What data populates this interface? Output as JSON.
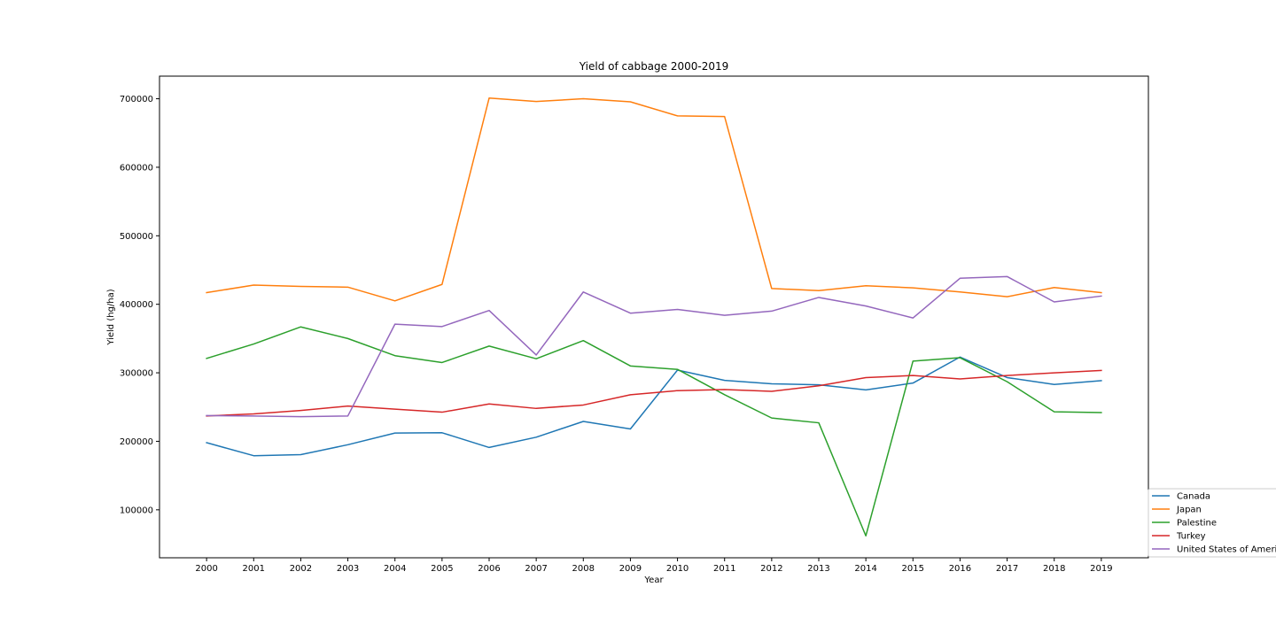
{
  "chart_data": {
    "type": "line",
    "title": "Yield of cabbage 2000-2019",
    "xlabel": "Year",
    "ylabel": "Yield (hg/ha)",
    "x": [
      2000,
      2001,
      2002,
      2003,
      2004,
      2005,
      2006,
      2007,
      2008,
      2009,
      2010,
      2011,
      2012,
      2013,
      2014,
      2015,
      2016,
      2017,
      2018,
      2019
    ],
    "xlim": [
      1999.0,
      2020.0
    ],
    "ylim": [
      30000,
      733000
    ],
    "yticks": [
      100000,
      200000,
      300000,
      400000,
      500000,
      600000,
      700000
    ],
    "legend_position": "lower-right-outside",
    "grid": false,
    "series": [
      {
        "name": "Canada",
        "color": "#1f77b4",
        "values": [
          198000,
          179000,
          180500,
          195000,
          212000,
          212500,
          191000,
          206000,
          229000,
          218000,
          304000,
          289000,
          284000,
          282500,
          275000,
          285000,
          323000,
          293000,
          283000,
          288500
        ]
      },
      {
        "name": "Japan",
        "color": "#ff7f0e",
        "values": [
          417000,
          428000,
          426000,
          425000,
          405000,
          429000,
          701000,
          696000,
          700000,
          695500,
          675000,
          674000,
          423000,
          420000,
          427000,
          424000,
          418000,
          411000,
          424500,
          417000
        ]
      },
      {
        "name": "Palestine",
        "color": "#2ca02c",
        "values": [
          321000,
          342000,
          367000,
          350000,
          325000,
          315000,
          339000,
          320500,
          347000,
          310000,
          305000,
          268000,
          234000,
          227000,
          62000,
          317000,
          322000,
          287000,
          243000,
          242000
        ]
      },
      {
        "name": "Turkey",
        "color": "#d62728",
        "values": [
          237000,
          240000,
          245000,
          251500,
          247000,
          242500,
          254500,
          248000,
          253000,
          268000,
          274000,
          275500,
          273000,
          281000,
          293000,
          296000,
          291000,
          296000,
          300000,
          303500
        ]
      },
      {
        "name": "United States of America",
        "color": "#9467bd",
        "values": [
          237500,
          237000,
          236000,
          237000,
          371000,
          367500,
          391000,
          326000,
          418000,
          387000,
          392500,
          384000,
          390000,
          410000,
          397500,
          380000,
          438000,
          440500,
          403500,
          412000
        ]
      }
    ]
  }
}
